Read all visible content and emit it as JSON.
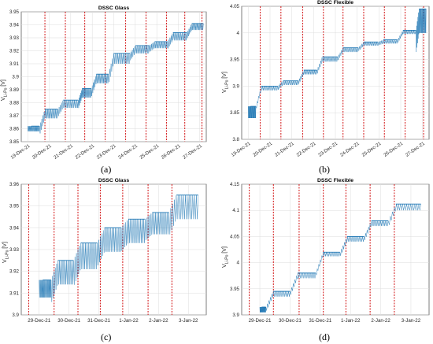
{
  "chart_data": [
    {
      "id": "a",
      "panel_label": "(a)",
      "type": "line",
      "title": "DSSC Glass",
      "ylabel_main": "V",
      "ylabel_sub": "Li-Po",
      "ylabel_unit": "[V]",
      "categories": [
        "19-Dec-21",
        "20-Dec-21",
        "21-Dec-21",
        "22-Dec-21",
        "23-Dec-21",
        "24-Dec-21",
        "25-Dec-21",
        "26-Dec-21",
        "27-Dec-21"
      ],
      "ylim": [
        3.85,
        3.95
      ],
      "yticks": [
        "3.85",
        "3.86",
        "3.87",
        "3.88",
        "3.89",
        "3.9",
        "3.91",
        "3.92",
        "3.93",
        "3.94",
        "3.95"
      ],
      "grid": true,
      "line_color": "#1f77b4",
      "marker_color": "#d62728",
      "series": [
        {
          "steps": [
            [
              0.0,
              3.862,
              3.858
            ],
            [
              0.55,
              3.875,
              3.868
            ],
            [
              1.4,
              3.882,
              3.876
            ],
            [
              2.35,
              3.891,
              3.884
            ],
            [
              2.95,
              3.902,
              3.895
            ],
            [
              3.75,
              3.918,
              3.91
            ],
            [
              4.75,
              3.924,
              3.918
            ],
            [
              5.65,
              3.927,
              3.922
            ],
            [
              6.5,
              3.934,
              3.928
            ],
            [
              7.4,
              3.941,
              3.936
            ]
          ]
        }
      ],
      "markers": [
        0.8,
        1.75,
        2.65,
        3.6,
        4.55,
        5.5,
        6.45,
        7.3,
        8.1
      ]
    },
    {
      "id": "b",
      "panel_label": "(b)",
      "type": "line",
      "title": "DSSC Flexible",
      "ylabel_main": "V",
      "ylabel_sub": "Li-Po",
      "ylabel_unit": "[V]",
      "categories": [
        "19-Dec-21",
        "20-Dec-21",
        "21-Dec-21",
        "22-Dec-21",
        "23-Dec-21",
        "24-Dec-21",
        "25-Dec-21",
        "26-Dec-21",
        "27-Dec-21"
      ],
      "ylim": [
        3.8,
        4.05
      ],
      "yticks": [
        "3.8",
        "3.85",
        "3.9",
        "3.95",
        "4",
        "4.05"
      ],
      "grid": true,
      "line_color": "#1f77b4",
      "marker_color": "#d62728",
      "series": [
        {
          "steps": [
            [
              0.0,
              3.862,
              3.84
            ],
            [
              0.35,
              3.9,
              3.892
            ],
            [
              1.35,
              3.91,
              3.902
            ],
            [
              2.3,
              3.93,
              3.922
            ],
            [
              3.15,
              3.955,
              3.946
            ],
            [
              4.1,
              3.972,
              3.964
            ],
            [
              5.05,
              3.983,
              3.976
            ],
            [
              5.95,
              3.987,
              3.98
            ],
            [
              6.85,
              4.005,
              3.998
            ],
            [
              7.7,
              4.045,
              4.0
            ]
          ]
        }
      ],
      "markers": [
        0.55,
        1.5,
        2.5,
        3.45,
        4.35,
        5.3,
        6.25,
        7.2,
        8.05
      ]
    },
    {
      "id": "c",
      "panel_label": "(c)",
      "type": "line",
      "title": "DSSC Glass",
      "ylabel_main": "V",
      "ylabel_sub": "Li-Po",
      "ylabel_unit": "[V]",
      "categories": [
        "29-Dec-21",
        "30-Dec-21",
        "31-Dec-21",
        "1-Jan-22",
        "2-Jan-22",
        "3-Jan-22"
      ],
      "ylim": [
        3.9,
        3.96
      ],
      "yticks": [
        "3.9",
        "3.91",
        "3.92",
        "3.93",
        "3.94",
        "3.95",
        "3.96"
      ],
      "grid": true,
      "line_color": "#1f77b4",
      "marker_color": "#d62728",
      "series": [
        {
          "steps": [
            [
              0.0,
              3.916,
              3.908
            ],
            [
              0.4,
              3.925,
              3.914
            ],
            [
              1.15,
              3.933,
              3.921
            ],
            [
              1.95,
              3.94,
              3.929
            ],
            [
              2.75,
              3.944,
              3.933
            ],
            [
              3.55,
              3.947,
              3.937
            ],
            [
              4.35,
              3.955,
              3.944
            ]
          ]
        }
      ],
      "markers": [
        -0.35,
        0.5,
        1.3,
        2.05,
        2.8,
        3.65,
        4.45
      ]
    },
    {
      "id": "d",
      "panel_label": "(d)",
      "type": "line",
      "title": "DSSC Flexible",
      "ylabel_main": "V",
      "ylabel_sub": "Li-Po",
      "ylabel_unit": "[V]",
      "categories": [
        "29-Dec-21",
        "30-Dec-21",
        "31-Dec-21",
        "1-Jan-22",
        "2-Jan-22",
        "3-Jan-22"
      ],
      "ylim": [
        3.9,
        4.15
      ],
      "yticks": [
        "3.9",
        "3.95",
        "4",
        "4.05",
        "4.1",
        "4.15"
      ],
      "grid": true,
      "line_color": "#1f77b4",
      "marker_color": "#d62728",
      "series": [
        {
          "steps": [
            [
              0.0,
              3.915,
              3.905
            ],
            [
              0.2,
              3.945,
              3.935
            ],
            [
              1.0,
              3.98,
              3.97
            ],
            [
              1.85,
              4.02,
              4.012
            ],
            [
              2.65,
              4.05,
              4.04
            ],
            [
              3.45,
              4.08,
              4.07
            ],
            [
              4.25,
              4.112,
              4.1
            ]
          ]
        }
      ],
      "markers": [
        -0.35,
        0.45,
        1.3,
        2.1,
        2.85,
        3.65,
        4.45
      ]
    }
  ]
}
